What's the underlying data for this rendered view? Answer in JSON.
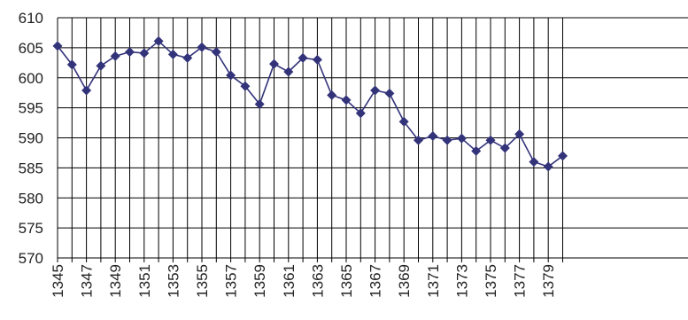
{
  "chart_data": {
    "type": "line",
    "title": "",
    "xlabel": "",
    "ylabel": "",
    "x": [
      1345,
      1346,
      1347,
      1348,
      1349,
      1350,
      1351,
      1352,
      1353,
      1354,
      1355,
      1356,
      1357,
      1358,
      1359,
      1360,
      1361,
      1362,
      1363,
      1364,
      1365,
      1366,
      1367,
      1368,
      1369,
      1370,
      1371,
      1372,
      1373,
      1374,
      1375,
      1376,
      1377,
      1378,
      1379,
      1380
    ],
    "x_tick_labels": [
      "1345",
      "1347",
      "1349",
      "1351",
      "1353",
      "1355",
      "1357",
      "1359",
      "1361",
      "1363",
      "1365",
      "1367",
      "1369",
      "1371",
      "1373",
      "1375",
      "1377",
      "1379"
    ],
    "series": [
      {
        "values": [
          605.3,
          602.2,
          597.9,
          602,
          603.6,
          604.3,
          604.1,
          606.1,
          603.9,
          603.3,
          605.1,
          604.3,
          600.4,
          598.6,
          595.6,
          602.3,
          601,
          603.3,
          603,
          597.1,
          596.3,
          594.1,
          597.9,
          597.4,
          592.7,
          589.6,
          590.3,
          589.6,
          589.9,
          587.8,
          589.6,
          588.3,
          590.6,
          586,
          585.2,
          587
        ],
        "color": "#33337a"
      }
    ],
    "yticks": [
      "570",
      "575",
      "580",
      "585",
      "590",
      "595",
      "600",
      "605",
      "610"
    ],
    "ylim": [
      570,
      610
    ],
    "grid": true
  }
}
